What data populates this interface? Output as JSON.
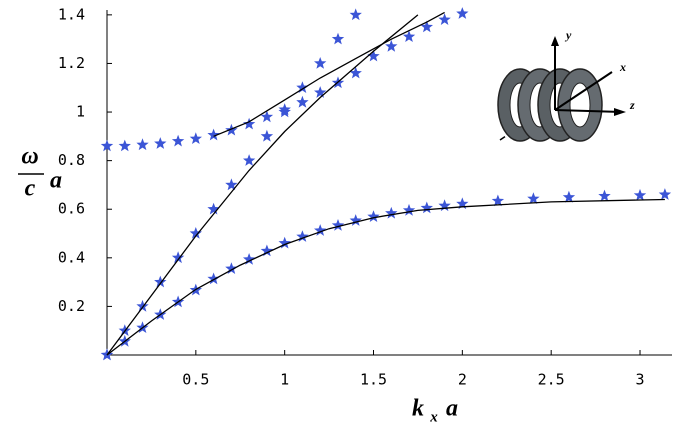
{
  "chart_data": {
    "type": "line",
    "y_label": {
      "numerator": "ω",
      "denominator": "c",
      "factor": "a"
    },
    "x_label": {
      "symbol": "k",
      "subscript": "x",
      "factor": "a"
    },
    "inset_labels": [
      "y",
      "x",
      "z"
    ],
    "xlim": [
      0,
      3.18
    ],
    "ylim": [
      0,
      1.42
    ],
    "xticks": [
      0.5,
      1,
      1.5,
      2,
      2.5,
      3
    ],
    "yticks": [
      0.2,
      0.4,
      0.6,
      0.8,
      1,
      1.2,
      1.4
    ],
    "series": [
      {
        "marker": "star",
        "color": "#3b55d6",
        "x": [
          0,
          0.1,
          0.2,
          0.3,
          0.4,
          0.5,
          0.6,
          0.7,
          0.8,
          0.9,
          1.0,
          1.1,
          1.2,
          1.3,
          1.4,
          1.5,
          1.6,
          1.7,
          1.8,
          1.9,
          2.0,
          2.2,
          2.4,
          2.6,
          2.8,
          3.0,
          3.14
        ],
        "values": [
          0,
          0.056,
          0.112,
          0.166,
          0.218,
          0.267,
          0.313,
          0.355,
          0.393,
          0.428,
          0.46,
          0.487,
          0.512,
          0.533,
          0.553,
          0.569,
          0.583,
          0.595,
          0.605,
          0.614,
          0.622,
          0.634,
          0.643,
          0.649,
          0.654,
          0.657,
          0.66
        ]
      },
      {
        "marker": "star",
        "color": "#3b55d6",
        "x": [
          0,
          0.1,
          0.2,
          0.3,
          0.4,
          0.5,
          0.6,
          0.7,
          0.8,
          0.9,
          1.0,
          1.1,
          1.2,
          1.3,
          1.4
        ],
        "values": [
          0,
          0.1,
          0.2,
          0.3,
          0.4,
          0.5,
          0.6,
          0.7,
          0.8,
          0.9,
          1.0,
          1.1,
          1.2,
          1.3,
          1.4
        ]
      },
      {
        "marker": "star",
        "color": "#3b55d6",
        "x": [
          0,
          0.1,
          0.2,
          0.3,
          0.4,
          0.5,
          0.6,
          0.7,
          0.8,
          0.9,
          1.0,
          1.1,
          1.2,
          1.3,
          1.4,
          1.5,
          1.6,
          1.7,
          1.8,
          1.9,
          2.0
        ],
        "values": [
          0.86,
          0.86,
          0.865,
          0.87,
          0.88,
          0.89,
          0.905,
          0.925,
          0.95,
          0.98,
          1.01,
          1.04,
          1.08,
          1.12,
          1.16,
          1.23,
          1.27,
          1.31,
          1.35,
          1.38,
          1.405
        ]
      },
      {
        "marker": "none",
        "color": "#000000",
        "x": [
          0,
          0.25,
          0.5,
          0.75,
          1,
          1.25,
          1.5,
          1.75,
          2,
          2.5,
          3,
          3.14
        ],
        "values": [
          0,
          0.14,
          0.27,
          0.37,
          0.455,
          0.52,
          0.565,
          0.595,
          0.61,
          0.63,
          0.638,
          0.64
        ]
      },
      {
        "marker": "none",
        "color": "#000000",
        "x": [
          0,
          0.5,
          0.8,
          1,
          1.2,
          1.5,
          1.75
        ],
        "values": [
          0,
          0.49,
          0.76,
          0.92,
          1.06,
          1.25,
          1.4
        ]
      },
      {
        "marker": "none",
        "color": "#000000",
        "x": [
          0.6,
          0.8,
          1,
          1.2,
          1.4,
          1.6,
          1.8,
          1.9
        ],
        "values": [
          0.9,
          0.96,
          1.05,
          1.14,
          1.22,
          1.3,
          1.37,
          1.41
        ]
      }
    ]
  }
}
